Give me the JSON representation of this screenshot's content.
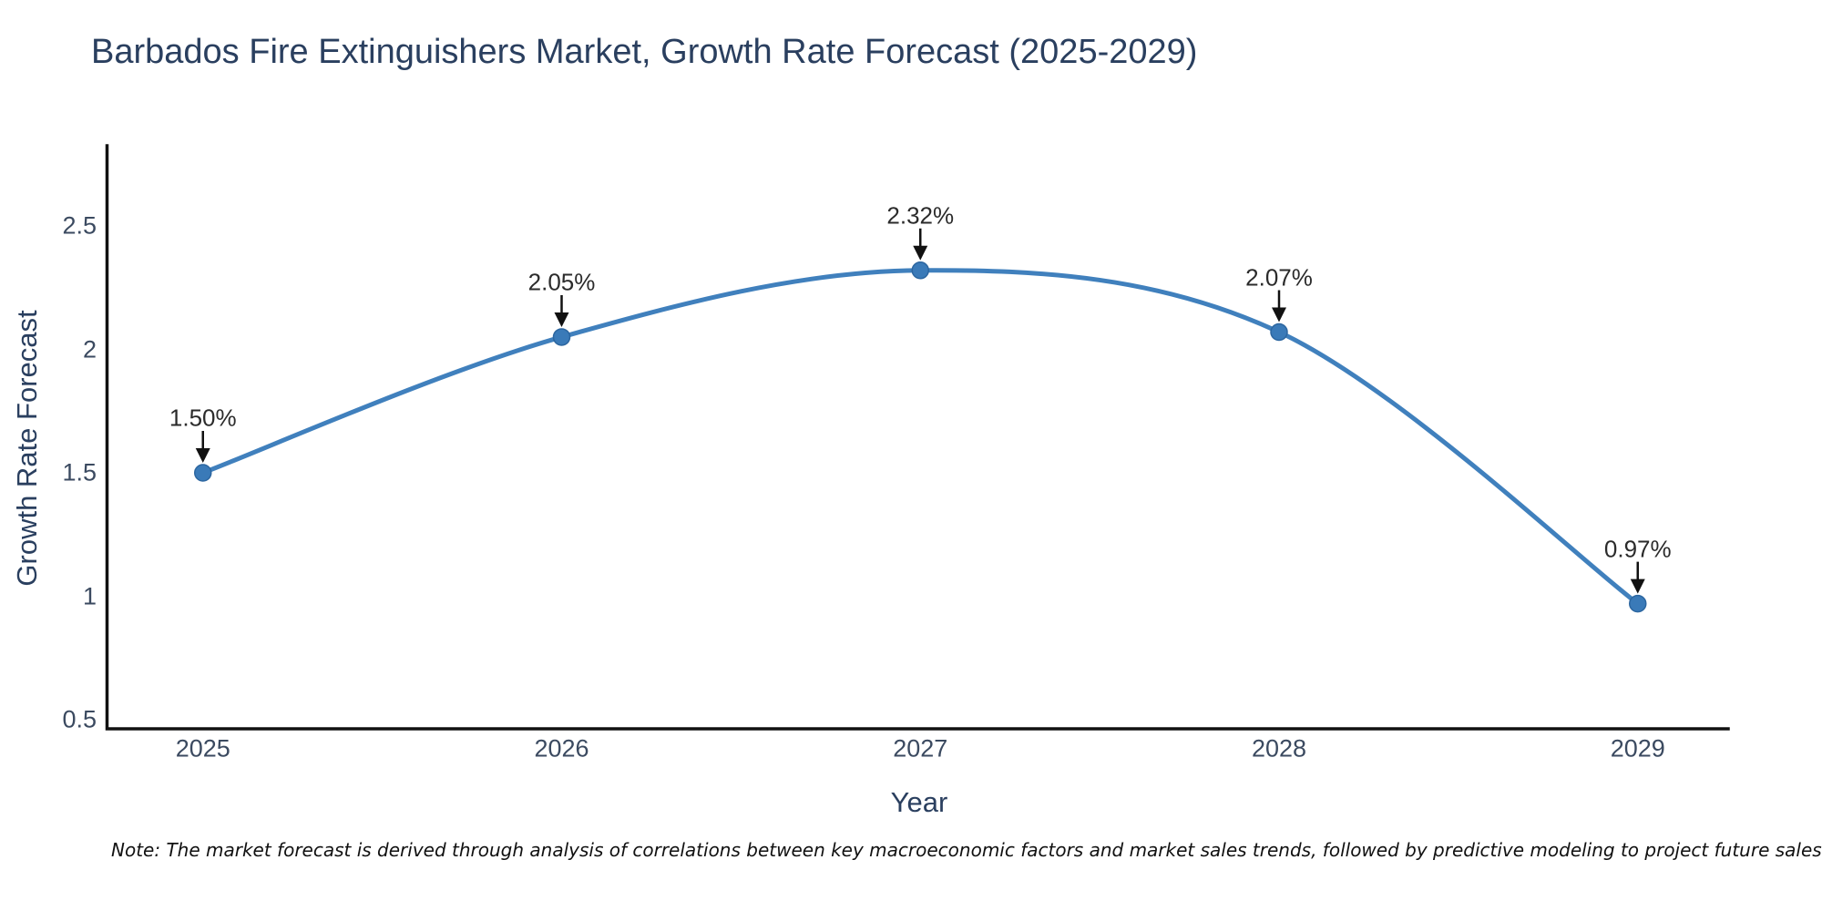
{
  "title": "Barbados Fire Extinguishers Market, Growth Rate Forecast (2025-2029)",
  "note": "Note: The market forecast is derived through analysis of correlations between key macroeconomic factors and market sales trends, followed by predictive modeling to project future sales",
  "chart_data": {
    "type": "line",
    "line_shape": "spline",
    "title": "Barbados Fire Extinguishers Market, Growth Rate Forecast (2025-2029)",
    "xlabel": "Year",
    "ylabel": "Growth Rate Forecast",
    "categories": [
      "2025",
      "2026",
      "2027",
      "2028",
      "2029"
    ],
    "values": [
      1.5,
      2.05,
      2.32,
      2.07,
      0.97
    ],
    "point_labels": [
      "1.50%",
      "2.05%",
      "2.32%",
      "2.07%",
      "0.97%"
    ],
    "yticks": [
      0.5,
      1,
      1.5,
      2,
      2.5
    ],
    "ytick_labels": [
      "0.5",
      "1",
      "1.5",
      "2",
      "2.5"
    ],
    "ylim": [
      0.46,
      2.82
    ],
    "grid": false,
    "legend": false,
    "markers": true,
    "annotations_arrow": true,
    "colors": {
      "line": "#4080bd",
      "marker": "#3a7ab8",
      "marker_edge": "#2c66a0",
      "axis": "#111111",
      "arrow": "#111111",
      "title_text": "#2a3f5f",
      "tick_text": "#3b4a60",
      "annotation_text": "#2b2b2b",
      "background": "#ffffff"
    }
  }
}
